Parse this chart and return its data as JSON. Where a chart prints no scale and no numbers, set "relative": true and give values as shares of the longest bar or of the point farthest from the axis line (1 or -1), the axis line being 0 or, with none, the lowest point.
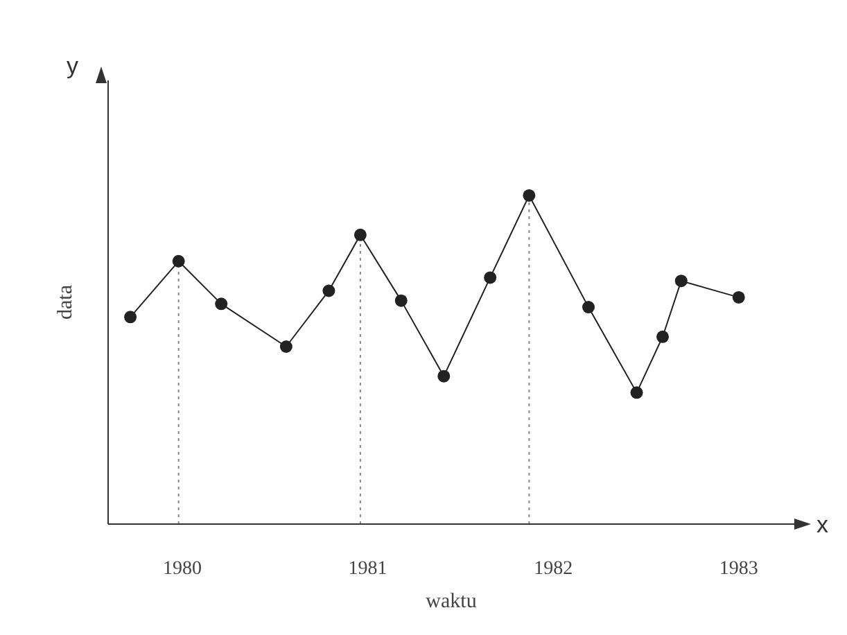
{
  "chart_data": {
    "type": "line",
    "relative": true,
    "xlabel": "waktu",
    "ylabel": "data",
    "annotations": [
      "y",
      "x"
    ],
    "xlim": [
      1979.6,
      1983.3
    ],
    "xticks": [
      1980,
      1981,
      1982,
      1983
    ],
    "marker": "circle",
    "line_style": "solid",
    "grid": false,
    "legend": false,
    "ref_lines": [
      {
        "axis": "x",
        "value": 1979.98,
        "line_style": "dotted",
        "color": "#888888"
      },
      {
        "axis": "x",
        "value": 1980.96,
        "line_style": "dotted",
        "color": "#888888"
      },
      {
        "axis": "x",
        "value": 1981.87,
        "line_style": "dotted",
        "color": "#888888"
      }
    ],
    "series": [
      {
        "color": "#222222",
        "x": [
          1979.72,
          1979.98,
          1980.21,
          1980.56,
          1980.79,
          1980.96,
          1981.18,
          1981.41,
          1981.66,
          1981.87,
          1982.19,
          1982.45,
          1982.59,
          1982.69,
          1983.0
        ],
        "values": [
          0.63,
          0.8,
          0.67,
          0.54,
          0.71,
          0.88,
          0.68,
          0.45,
          0.75,
          1,
          0.66,
          0.4,
          0.57,
          0.74,
          0.69
        ]
      }
    ]
  }
}
